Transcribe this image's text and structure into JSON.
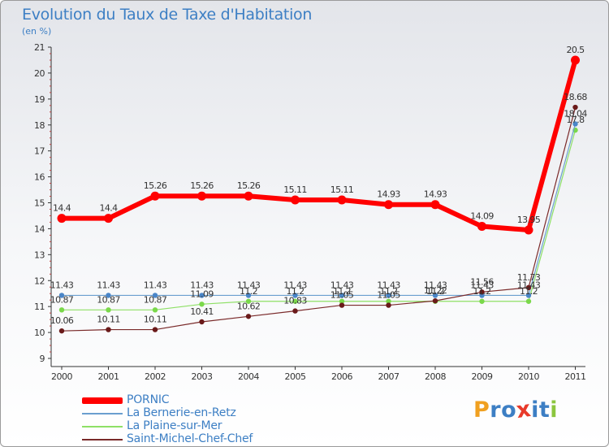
{
  "chart_data": {
    "type": "line",
    "title": "Evolution du Taux de Taxe d'Habitation",
    "ylabel": "(en %)",
    "xlabel": "",
    "categories": [
      "2000",
      "2001",
      "2002",
      "2003",
      "2004",
      "2005",
      "2006",
      "2007",
      "2008",
      "2009",
      "2010",
      "2011"
    ],
    "ylim": [
      9,
      21
    ],
    "yticks": [
      9,
      10,
      11,
      12,
      13,
      14,
      15,
      16,
      17,
      18,
      19,
      20,
      21
    ],
    "grid": false,
    "legend_position": "bottom-left",
    "series": [
      {
        "name": "PORNIC",
        "color": "#ff0000",
        "values": [
          14.4,
          14.4,
          15.26,
          15.26,
          15.26,
          15.11,
          15.11,
          14.93,
          14.93,
          14.09,
          13.95,
          20.5
        ],
        "labels": [
          "14.4",
          "14.4",
          "15.26",
          "15.26",
          "15.26",
          "15.11",
          "15.11",
          "14.93",
          "14.93",
          "14.09",
          "13.95",
          "20.5"
        ]
      },
      {
        "name": "La Bernerie-en-Retz",
        "color": "#6a9fcf",
        "values": [
          11.43,
          11.43,
          11.43,
          11.43,
          11.43,
          11.43,
          11.43,
          11.43,
          11.43,
          11.43,
          11.43,
          18.04
        ],
        "labels": [
          "11.43",
          "11.43",
          "11.43",
          "11.43",
          "11.43",
          "11.43",
          "11.43",
          "11.43",
          "11.43",
          "11.43",
          "11.43",
          "18.04"
        ]
      },
      {
        "name": "La Plaine-sur-Mer",
        "color": "#8ee066",
        "values": [
          10.87,
          10.87,
          10.87,
          11.09,
          11.2,
          11.2,
          11.2,
          11.2,
          11.2,
          11.2,
          11.2,
          17.8
        ],
        "labels": [
          "10.87",
          "10.87",
          "10.87",
          "11.09",
          "11.2",
          "11.2",
          "11.2",
          "11.2",
          "11.2",
          "11.2",
          "11.2",
          "17.8"
        ]
      },
      {
        "name": "Saint-Michel-Chef-Chef",
        "color": "#7a2a2a",
        "values": [
          10.06,
          10.11,
          10.11,
          10.41,
          10.62,
          10.83,
          11.05,
          11.05,
          11.22,
          11.56,
          11.73,
          18.68
        ],
        "labels": [
          "10.06",
          "10.11",
          "10.11",
          "10.41",
          "10.62",
          "10.83",
          "11.05",
          "11.05",
          "11.22",
          "11.56",
          "11.73",
          "18.68"
        ]
      }
    ]
  },
  "logo": {
    "letters": [
      "P",
      "r",
      "o",
      "x",
      "i",
      "t",
      "i"
    ],
    "colors": [
      "#f0a020",
      "#3d7fc4",
      "#3d7fc4",
      "#e83a2a",
      "#3d7fc4",
      "#3d7fc4",
      "#8cc63f"
    ]
  }
}
